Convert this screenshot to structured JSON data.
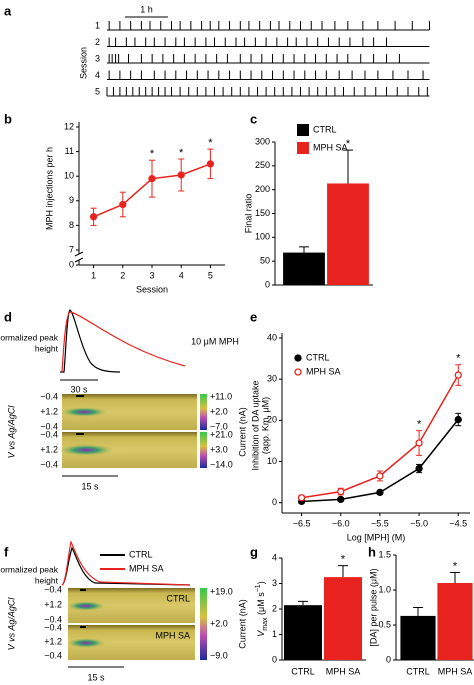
{
  "chart_data": [
    {
      "type": "raster",
      "label": "a",
      "scalebar": {
        "value": 1,
        "label": "1 h"
      },
      "ylabel": "Session",
      "categories": [
        "1",
        "2",
        "3",
        "4",
        "5"
      ],
      "xlim": [
        0,
        7.5
      ],
      "events": [
        [
          0.05,
          0.3,
          0.55,
          0.8,
          1.0,
          1.25,
          1.5,
          1.7,
          1.95,
          2.2,
          2.4,
          2.6,
          2.85,
          3.1,
          3.3,
          3.55,
          3.8,
          4.0,
          4.25,
          4.5,
          4.75,
          5.0,
          5.3,
          5.6,
          5.95,
          6.3,
          6.7,
          7.1,
          7.5
        ],
        [
          0.05,
          0.2,
          0.45,
          0.65,
          0.9,
          1.1,
          1.35,
          1.6,
          1.8,
          2.05,
          2.3,
          2.5,
          2.75,
          3.0,
          3.2,
          3.45,
          3.7,
          3.95,
          4.2,
          4.4,
          4.65,
          4.9,
          5.15,
          5.4,
          5.65,
          5.95,
          6.2,
          6.5
        ],
        [
          0.05,
          0.12,
          0.2,
          0.27,
          0.5,
          0.8,
          1.05,
          1.3,
          1.55,
          1.8,
          2.05,
          2.3,
          2.55,
          2.8,
          3.1,
          3.35,
          3.6,
          3.85,
          4.1,
          4.35,
          4.6,
          4.85,
          5.1,
          5.35,
          5.6,
          5.9,
          6.2,
          6.5,
          6.8
        ],
        [
          0.05,
          0.3,
          0.55,
          0.8,
          1.1,
          1.35,
          1.6,
          1.85,
          2.1,
          2.35,
          2.6,
          2.85,
          3.1,
          3.35,
          3.6,
          3.85,
          4.1,
          4.35,
          4.6,
          4.85,
          5.1,
          5.4,
          5.7,
          6.0,
          6.3,
          6.65,
          7.0,
          7.35
        ],
        [
          0.0,
          0.15,
          0.3,
          0.45,
          0.6,
          0.75,
          0.9,
          1.05,
          1.2,
          1.35,
          1.5,
          1.7,
          1.9,
          2.1,
          2.3,
          2.5,
          2.7,
          2.9,
          3.1,
          3.3,
          3.5,
          3.7,
          3.9,
          4.1,
          4.3,
          4.5,
          4.7,
          4.9,
          5.1,
          5.3,
          5.5,
          5.75,
          6.0,
          6.25,
          6.5,
          6.75,
          7.0,
          7.25,
          7.45
        ]
      ]
    },
    {
      "type": "line",
      "label": "b",
      "ylabel": "MPH injections per h",
      "xlabel": "Session",
      "x": [
        1,
        2,
        3,
        4,
        5
      ],
      "xlim": [
        0.5,
        5.5
      ],
      "xticks": [
        1,
        2,
        3,
        4,
        5
      ],
      "ylim": [
        7,
        12
      ],
      "yticks": [
        7,
        8,
        9,
        10,
        11,
        12
      ],
      "axis_break_tick": 0,
      "series": [
        {
          "color": "#e8231f",
          "values": [
            8.35,
            8.85,
            9.9,
            10.05,
            10.5
          ],
          "errors": [
            0.35,
            0.5,
            0.75,
            0.65,
            0.6
          ],
          "filled": true
        }
      ],
      "annotations": [
        {
          "x": 3,
          "text": "*"
        },
        {
          "x": 4,
          "text": "*"
        },
        {
          "x": 5,
          "text": "*"
        }
      ]
    },
    {
      "type": "bar",
      "label": "c",
      "ylabel": "Final ratio",
      "categories": [
        "CTRL",
        "MPH SA"
      ],
      "values": [
        68,
        213
      ],
      "errors": [
        12,
        70
      ],
      "colors": [
        "#000000",
        "#e8231f"
      ],
      "ylim": [
        0,
        300
      ],
      "yticks": [
        0,
        50,
        100,
        150,
        200,
        250,
        300
      ],
      "legend": "upper left",
      "annotations": [
        {
          "x": "MPH SA",
          "text": "*"
        }
      ]
    },
    {
      "type": "voltammetry",
      "label": "d",
      "trace_ylabel": [
        "Normalized peak",
        "height"
      ],
      "trace_annotation": "10 μM MPH",
      "trace_scalebar": "30 s",
      "heatmaps": [
        {
          "voltage_labels": [
            "−0.4",
            "+1.2",
            "−0.4"
          ],
          "colorbar": [
            "+11.0",
            "+2.0",
            "−7.0"
          ]
        },
        {
          "voltage_labels": [
            "−0.4",
            "+1.2",
            "−0.4"
          ],
          "colorbar": [
            "+21.0",
            "+3.0",
            "−14.0"
          ]
        }
      ],
      "ylabel": "V vs Ag/AgCl",
      "colorbar_label": "Current (nA)",
      "scalebar": "15 s"
    },
    {
      "type": "line",
      "label": "e",
      "ylabel": [
        "Inhibition of DA uptake",
        "(app. Km, μM)"
      ],
      "xlabel": "Log [MPH] (M)",
      "x": [
        -6.5,
        -6,
        -5.5,
        -5,
        -4.5
      ],
      "xlim": [
        -6.75,
        -4.35
      ],
      "xticks": [
        {
          "value": -6.5,
          "label": "−6.5"
        },
        {
          "value": -6,
          "label": "−6.0"
        },
        {
          "value": -5.5,
          "label": "−5.5"
        },
        {
          "value": -5,
          "label": "−5.0"
        },
        {
          "value": -4.5,
          "label": "−4.5"
        }
      ],
      "ylim": [
        -2.5,
        40
      ],
      "yticks": [
        0,
        10,
        20,
        30,
        40
      ],
      "legend": "upper left",
      "series": [
        {
          "name": "CTRL",
          "color": "#000000",
          "values": [
            0.3,
            0.8,
            2.5,
            8.3,
            20.2
          ],
          "errors": [
            0.4,
            0.4,
            0.5,
            1.0,
            1.5
          ],
          "filled": true
        },
        {
          "name": "MPH SA",
          "color": "#e8231f",
          "values": [
            1.2,
            2.7,
            6.5,
            14.5,
            31
          ],
          "errors": [
            0.6,
            0.8,
            1.2,
            3.0,
            2.5
          ],
          "filled": false
        }
      ],
      "annotations": [
        {
          "x": -5,
          "text": "*"
        },
        {
          "x": -4.5,
          "text": "*"
        }
      ]
    },
    {
      "type": "voltammetry",
      "label": "f",
      "trace_ylabel": [
        "Normalized peak",
        "height"
      ],
      "legend": [
        "CTRL",
        "MPH SA"
      ],
      "heatmaps": [
        {
          "name": "CTRL",
          "voltage_labels": [
            "−0.4",
            "+1.2",
            "−0.4"
          ]
        },
        {
          "name": "MPH SA",
          "voltage_labels": [
            "−0.4",
            "+1.2",
            "−0.4"
          ]
        }
      ],
      "colorbar": [
        "+19.0",
        "+2.0",
        "−9.0"
      ],
      "ylabel": "V vs Ag/AgCl",
      "colorbar_label": "Current (nA)",
      "scalebar": "15 s"
    },
    {
      "type": "bar",
      "label": "g",
      "ylabel_parts": [
        "V",
        "max",
        " (μM s",
        "−1",
        ")"
      ],
      "categories": [
        "CTRL",
        "MPH SA"
      ],
      "values": [
        2.15,
        3.25
      ],
      "errors": [
        0.15,
        0.45
      ],
      "colors": [
        "#000000",
        "#e8231f"
      ],
      "ylim": [
        0,
        4
      ],
      "yticks": [
        0,
        1,
        2,
        3,
        4
      ],
      "annotations": [
        {
          "x": "MPH SA",
          "text": "*"
        }
      ]
    },
    {
      "type": "bar",
      "label": "h",
      "ylabel": "[DA] per pulse (μM)",
      "categories": [
        "CTRL",
        "MPH SA"
      ],
      "values": [
        0.63,
        1.1
      ],
      "errors": [
        0.12,
        0.15
      ],
      "colors": [
        "#000000",
        "#e8231f"
      ],
      "ylim": [
        0,
        1.5
      ],
      "yticks": [
        0,
        0.5,
        {
          "value": 1,
          "label": "1.0"
        },
        1.5
      ],
      "annotations": [
        {
          "x": "MPH SA",
          "text": "*"
        }
      ]
    }
  ]
}
